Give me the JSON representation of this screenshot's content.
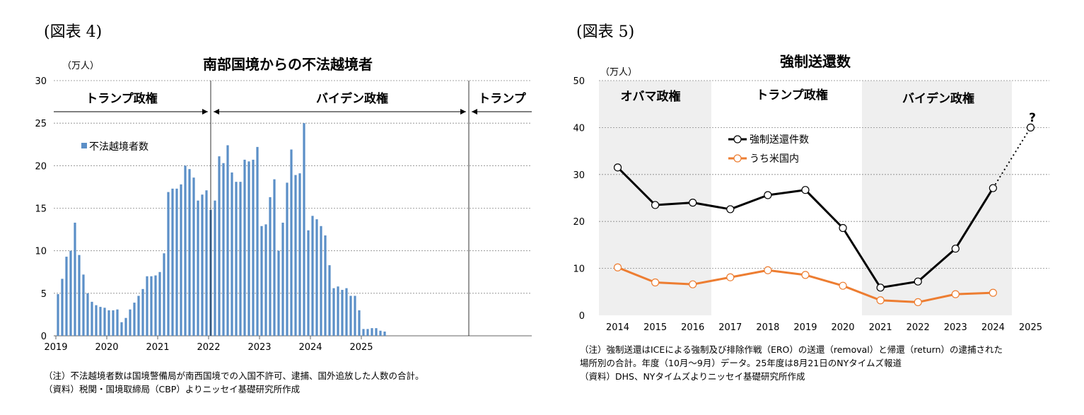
{
  "figures": [
    {
      "label": "(図表 4)",
      "title": "南部国境からの不法越境者",
      "unit": "（万人）",
      "era_labels": [
        "トランプ政権",
        "バイデン政権",
        "トランプ"
      ],
      "legend": "不法越境者数",
      "notes": [
        "（注）不法越境者数は国境警備局が南西国境での入国不許可、逮捕、国外追放した人数の合計。",
        "（資料）税関・国境取締局（CBP）よりニッセイ基礎研究所作成"
      ]
    },
    {
      "label": "(図表 5)",
      "title": "強制送還数",
      "unit": "（万人）",
      "era_labels": [
        "オバマ政権",
        "トランプ政権",
        "バイデン政権"
      ],
      "question_mark": "?",
      "notes": [
        "（注）強制送還はICEによる強制及び排除作戦（ERO）の送還（removal）と帰還（return）の逮捕された",
        "場所別の合計。年度（10月～9月）データ。25年度は8月21日のNYタイムズ報道",
        "（資料）DHS、NYタイムズよりニッセイ基礎研究所作成"
      ]
    }
  ],
  "chart_data": [
    {
      "type": "bar",
      "title": "南部国境からの不法越境者",
      "ylabel": "（万人）",
      "ylim": [
        0,
        30
      ],
      "yticks": [
        0,
        5,
        10,
        15,
        20,
        25,
        30
      ],
      "xticks": [
        "2019",
        "2020",
        "2021",
        "2022",
        "2023",
        "2024",
        "2025"
      ],
      "grid": true,
      "legend_position": "top-left",
      "series": [
        {
          "name": "不法越境者数",
          "color": "#5b8fc7",
          "values": [
            4.9,
            6.7,
            9.3,
            10.0,
            13.3,
            9.5,
            7.2,
            5.0,
            4.0,
            3.6,
            3.4,
            3.3,
            3.0,
            3.0,
            3.1,
            1.6,
            2.1,
            3.1,
            3.9,
            4.7,
            5.5,
            7.0,
            7.0,
            7.1,
            7.5,
            9.7,
            16.9,
            17.3,
            17.3,
            17.8,
            20.0,
            19.6,
            18.6,
            15.9,
            16.6,
            17.1,
            14.8,
            15.9,
            21.1,
            20.3,
            22.4,
            19.2,
            18.1,
            18.1,
            20.7,
            20.5,
            20.7,
            22.2,
            12.9,
            13.1,
            16.3,
            18.4,
            10.0,
            13.3,
            18.0,
            21.9,
            18.9,
            19.1,
            25.0,
            12.4,
            14.1,
            13.7,
            12.9,
            11.8,
            8.3,
            5.6,
            5.8,
            5.4,
            5.6,
            4.7,
            4.7,
            3.0,
            0.8,
            0.8,
            0.9,
            0.9,
            0.6,
            0.5
          ]
        }
      ]
    },
    {
      "type": "line",
      "title": "強制送還数",
      "ylabel": "（万人）",
      "ylim": [
        0,
        50
      ],
      "yticks": [
        0,
        10,
        20,
        30,
        40,
        50
      ],
      "x": [
        "2014",
        "2015",
        "2016",
        "2017",
        "2018",
        "2019",
        "2020",
        "2021",
        "2022",
        "2023",
        "2024",
        "2025"
      ],
      "grid": true,
      "legend_position": "upper-left",
      "series": [
        {
          "name": "強制送還件数",
          "color": "#000000",
          "values": [
            31.5,
            23.5,
            24.0,
            22.6,
            25.6,
            26.7,
            18.6,
            5.9,
            7.2,
            14.2,
            27.1,
            null
          ],
          "projection": {
            "from": "2024",
            "to": "2025",
            "values": [
              27.1,
              40.0
            ],
            "style": "dotted"
          }
        },
        {
          "name": "うち米国内",
          "color": "#ed7d31",
          "values": [
            10.2,
            7.0,
            6.6,
            8.1,
            9.6,
            8.6,
            6.3,
            3.2,
            2.8,
            4.5,
            4.8,
            null
          ]
        }
      ]
    }
  ]
}
